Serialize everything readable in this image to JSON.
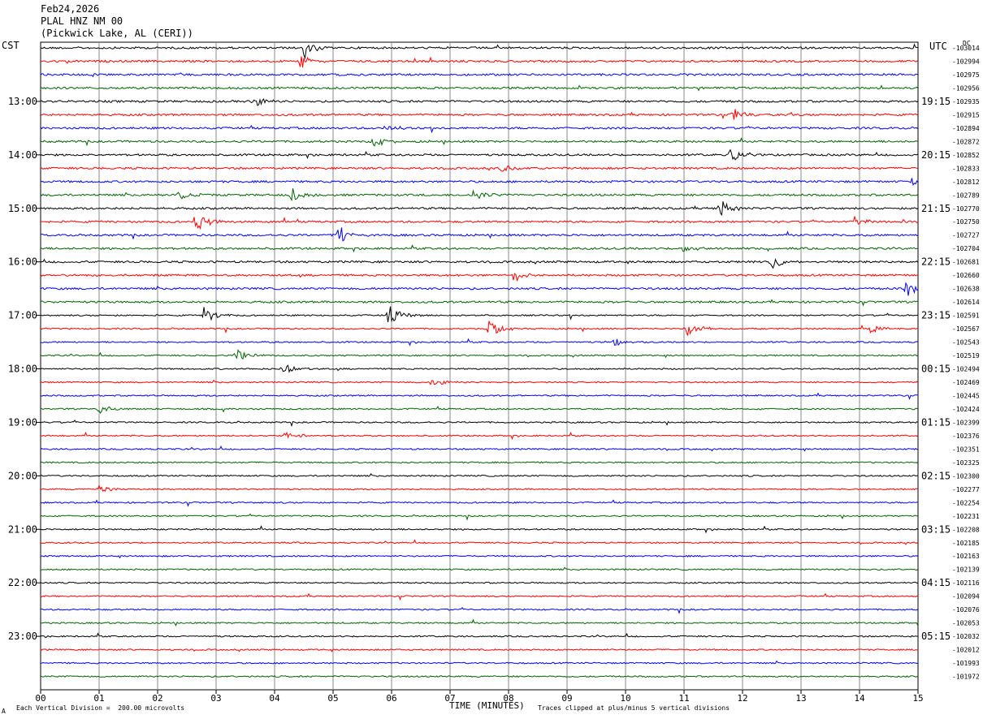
{
  "header": {
    "date": "Feb24,2026",
    "station": "PLAL HNZ NM 00",
    "location": "(Pickwick Lake, AL (CERI))"
  },
  "left_zone": "CST",
  "right_zone": "UTC",
  "dc_label": "DC",
  "footer": {
    "scale_note": "Each Vertical Division =  200.00 microvolts",
    "clip_note": "Traces clipped at plus/minus 5 vertical divisions",
    "corner_mark": "A"
  },
  "colors": {
    "trace_cycle": [
      "#000000",
      "#ff0000",
      "#0000ff",
      "#006400"
    ],
    "grid": "#888888"
  },
  "chart_data": {
    "type": "line",
    "xlabel": "TIME (MINUTES)",
    "x_ticks": [
      "00",
      "01",
      "02",
      "03",
      "04",
      "05",
      "06",
      "07",
      "08",
      "09",
      "10",
      "11",
      "12",
      "13",
      "14",
      "15"
    ],
    "xlim": [
      0,
      15
    ],
    "left_hour_labels": [
      {
        "trace": 4,
        "label": "13:00"
      },
      {
        "trace": 8,
        "label": "14:00"
      },
      {
        "trace": 12,
        "label": "15:00"
      },
      {
        "trace": 16,
        "label": "16:00"
      },
      {
        "trace": 20,
        "label": "17:00"
      },
      {
        "trace": 24,
        "label": "18:00"
      },
      {
        "trace": 28,
        "label": "19:00"
      },
      {
        "trace": 32,
        "label": "20:00"
      },
      {
        "trace": 36,
        "label": "21:00"
      },
      {
        "trace": 40,
        "label": "22:00"
      },
      {
        "trace": 44,
        "label": "23:00"
      }
    ],
    "right_hour_labels": [
      {
        "trace": 4,
        "label": "19:15"
      },
      {
        "trace": 8,
        "label": "20:15"
      },
      {
        "trace": 12,
        "label": "21:15"
      },
      {
        "trace": 16,
        "label": "22:15"
      },
      {
        "trace": 20,
        "label": "23:15"
      },
      {
        "trace": 24,
        "label": "00:15"
      },
      {
        "trace": 28,
        "label": "01:15"
      },
      {
        "trace": 32,
        "label": "02:15"
      },
      {
        "trace": 36,
        "label": "03:15"
      },
      {
        "trace": 40,
        "label": "04:15"
      },
      {
        "trace": 44,
        "label": "05:15"
      }
    ],
    "dc_offsets": [
      "-103014",
      "-102994",
      "-102975",
      "-102956",
      "-102935",
      "-102915",
      "-102894",
      "-102872",
      "-102852",
      "-102833",
      "-102812",
      "-102789",
      "-102770",
      "-102750",
      "-102727",
      "-102704",
      "-102681",
      "-102660",
      "-102638",
      "-102614",
      "-102591",
      "-102567",
      "-102543",
      "-102519",
      "-102494",
      "-102469",
      "-102445",
      "-102424",
      "-102399",
      "-102376",
      "-102351",
      "-102325",
      "-102300",
      "-102277",
      "-102254",
      "-102231",
      "-102208",
      "-102185",
      "-102163",
      "-102139",
      "-102116",
      "-102094",
      "-102076",
      "-102053",
      "-102032",
      "-102012",
      "-101993",
      "-101972"
    ],
    "events": [
      {
        "trace": 0,
        "minute": 4.5,
        "amp": 14
      },
      {
        "trace": 1,
        "minute": 4.45,
        "amp": 10
      },
      {
        "trace": 4,
        "minute": 3.65,
        "amp": 8
      },
      {
        "trace": 5,
        "minute": 11.85,
        "amp": 9
      },
      {
        "trace": 6,
        "minute": 5.9,
        "amp": 5
      },
      {
        "trace": 7,
        "minute": 5.7,
        "amp": 7
      },
      {
        "trace": 8,
        "minute": 11.8,
        "amp": 11
      },
      {
        "trace": 9,
        "minute": 7.9,
        "amp": 6
      },
      {
        "trace": 10,
        "minute": 14.9,
        "amp": 5
      },
      {
        "trace": 11,
        "minute": 4.3,
        "amp": 9
      },
      {
        "trace": 11,
        "minute": 7.4,
        "amp": 9
      },
      {
        "trace": 11,
        "minute": 2.35,
        "amp": 7
      },
      {
        "trace": 12,
        "minute": 11.6,
        "amp": 12
      },
      {
        "trace": 13,
        "minute": 2.65,
        "amp": 14
      },
      {
        "trace": 13,
        "minute": 13.9,
        "amp": 8
      },
      {
        "trace": 14,
        "minute": 5.1,
        "amp": 13
      },
      {
        "trace": 15,
        "minute": 11.0,
        "amp": 6
      },
      {
        "trace": 16,
        "minute": 12.5,
        "amp": 10
      },
      {
        "trace": 17,
        "minute": 8.05,
        "amp": 11
      },
      {
        "trace": 18,
        "minute": 14.8,
        "amp": 10
      },
      {
        "trace": 20,
        "minute": 5.95,
        "amp": 14
      },
      {
        "trace": 20,
        "minute": 2.8,
        "amp": 12
      },
      {
        "trace": 21,
        "minute": 7.65,
        "amp": 14
      },
      {
        "trace": 21,
        "minute": 11.05,
        "amp": 12
      },
      {
        "trace": 21,
        "minute": 14.2,
        "amp": 7
      },
      {
        "trace": 22,
        "minute": 9.8,
        "amp": 5
      },
      {
        "trace": 23,
        "minute": 3.35,
        "amp": 9
      },
      {
        "trace": 24,
        "minute": 4.15,
        "amp": 8
      },
      {
        "trace": 25,
        "minute": 6.7,
        "amp": 7
      },
      {
        "trace": 27,
        "minute": 1.0,
        "amp": 6
      },
      {
        "trace": 29,
        "minute": 4.2,
        "amp": 6
      },
      {
        "trace": 33,
        "minute": 1.0,
        "amp": 5
      }
    ]
  }
}
